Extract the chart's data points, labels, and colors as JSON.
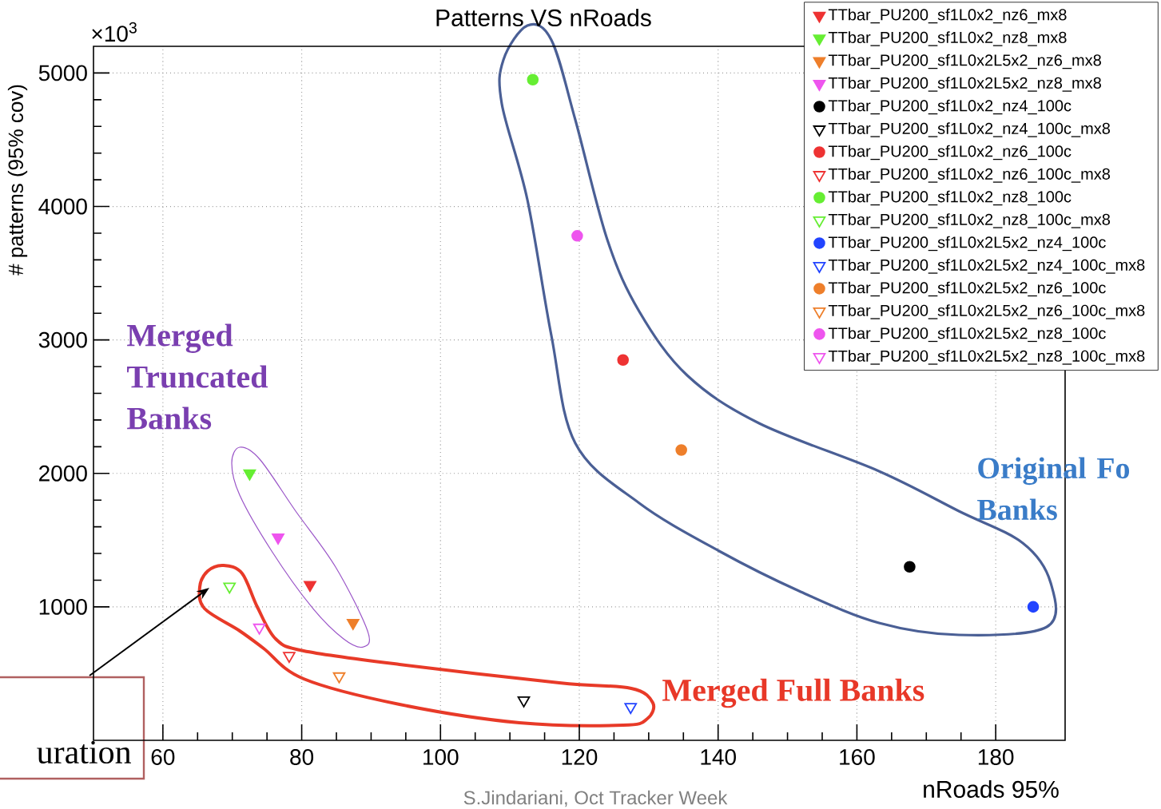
{
  "chart_data": {
    "type": "scatter",
    "title": "Patterns VS nRoads",
    "xlabel": "nRoads 95%",
    "ylabel": "# patterns (95% cov)",
    "xlim": [
      50,
      190
    ],
    "ylim": [
      0,
      5200
    ],
    "xticks": [
      60,
      80,
      100,
      120,
      140,
      160,
      180
    ],
    "yticks": [
      1000,
      2000,
      3000,
      4000,
      5000
    ],
    "grid": true,
    "legend": "top right",
    "annotations": [
      "×10$^{3}$",
      "Merged Truncated Banks",
      "Original Fo Banks",
      "Merged Full Banks",
      "uration",
      "S.Jindariani, Oct Tracker Week"
    ],
    "series": [
      {
        "name": "TTbar_PU200_sf1L0x2_nz6_mx8",
        "color": "#ee3333",
        "marker": "triangle",
        "x": [
          81.2
        ],
        "values": [
          1165
        ]
      },
      {
        "name": "TTbar_PU200_sf1L0x2_nz8_mx8",
        "color": "#66ee33",
        "marker": "triangle",
        "x": [
          72.5
        ],
        "values": [
          2000
        ]
      },
      {
        "name": "TTbar_PU200_sf1L0x2L5x2_nz6_mx8",
        "color": "#ee7f2b",
        "marker": "triangle",
        "x": [
          87.4
        ],
        "values": [
          880
        ]
      },
      {
        "name": "TTbar_PU200_sf1L0x2L5x2_nz8_mx8",
        "color": "#ee55ee",
        "marker": "triangle",
        "x": [
          76.6
        ],
        "values": [
          1520
        ]
      },
      {
        "name": "TTbar_PU200_sf1L0x2_nz4_100c",
        "color": "#000000",
        "marker": "circle",
        "x": [
          167.6
        ],
        "values": [
          1300
        ]
      },
      {
        "name": "TTbar_PU200_sf1L0x2_nz4_100c_mx8",
        "color": "#000000",
        "marker": "triangle-open",
        "x": [
          112.0
        ],
        "values": [
          300
        ]
      },
      {
        "name": "TTbar_PU200_sf1L0x2_nz6_100c",
        "color": "#ee3333",
        "marker": "circle",
        "x": [
          126.3
        ],
        "values": [
          2850
        ]
      },
      {
        "name": "TTbar_PU200_sf1L0x2_nz6_100c_mx8",
        "color": "#ee3333",
        "marker": "triangle-open",
        "x": [
          78.2
        ],
        "values": [
          633
        ]
      },
      {
        "name": "TTbar_PU200_sf1L0x2_nz8_100c",
        "color": "#66ee33",
        "marker": "circle",
        "x": [
          113.3
        ],
        "values": [
          4950
        ]
      },
      {
        "name": "TTbar_PU200_sf1L0x2_nz8_100c_mx8",
        "color": "#66ee33",
        "marker": "triangle-open",
        "x": [
          69.6
        ],
        "values": [
          1152
        ]
      },
      {
        "name": "TTbar_PU200_sf1L0x2L5x2_nz4_100c",
        "color": "#2244ff",
        "marker": "circle",
        "x": [
          185.4
        ],
        "values": [
          1000
        ]
      },
      {
        "name": "TTbar_PU200_sf1L0x2L5x2_nz4_100c_mx8",
        "color": "#2244ff",
        "marker": "triangle-open",
        "x": [
          127.4
        ],
        "values": [
          250
        ]
      },
      {
        "name": "TTbar_PU200_sf1L0x2L5x2_nz6_100c",
        "color": "#ee7f2b",
        "marker": "circle",
        "x": [
          134.7
        ],
        "values": [
          2175
        ]
      },
      {
        "name": "TTbar_PU200_sf1L0x2L5x2_nz6_100c_mx8",
        "color": "#ee7f2b",
        "marker": "triangle-open",
        "x": [
          85.4
        ],
        "values": [
          480
        ]
      },
      {
        "name": "TTbar_PU200_sf1L0x2L5x2_nz8_100c",
        "color": "#ee55ee",
        "marker": "circle",
        "x": [
          119.7
        ],
        "values": [
          3780
        ]
      },
      {
        "name": "TTbar_PU200_sf1L0x2L5x2_nz8_100c_mx8",
        "color": "#ee55ee",
        "marker": "triangle-open",
        "x": [
          73.9
        ],
        "values": [
          845
        ]
      }
    ]
  }
}
